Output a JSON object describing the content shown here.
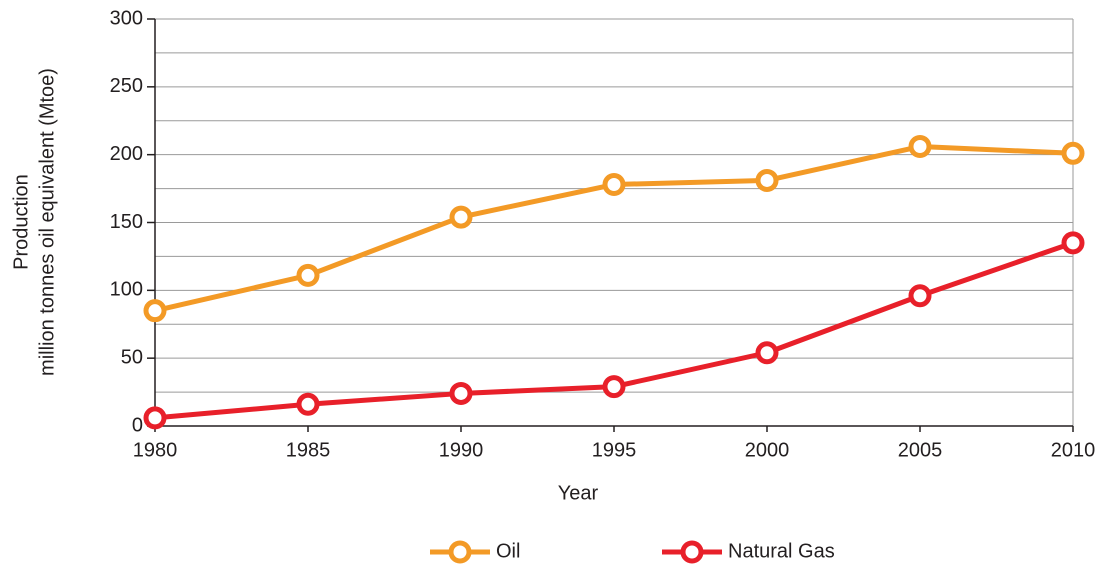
{
  "chart_data": {
    "type": "line",
    "x_label": "Year",
    "y_label": [
      "Production",
      "million tonnes oil equivalent (Mtoe)"
    ],
    "x": [
      1980,
      1985,
      1990,
      1995,
      2000,
      2005,
      2010
    ],
    "series": [
      {
        "name": "Oil",
        "color": "#f39a26",
        "values": [
          85,
          111,
          154,
          178,
          181,
          206,
          201
        ]
      },
      {
        "name": "Natural Gas",
        "color": "#e8202a",
        "values": [
          6,
          16,
          24,
          29,
          54,
          96,
          135
        ]
      }
    ],
    "xlim": [
      1980,
      2010
    ],
    "xticks": [
      1980,
      1985,
      1990,
      1995,
      2000,
      2005,
      2010
    ],
    "ylim": [
      0,
      300
    ],
    "yticks": [
      0,
      50,
      100,
      150,
      200,
      250,
      300
    ],
    "minor_yticks": [
      25,
      75,
      125,
      175,
      225,
      275
    ],
    "grid": true,
    "legend": "bottom"
  }
}
